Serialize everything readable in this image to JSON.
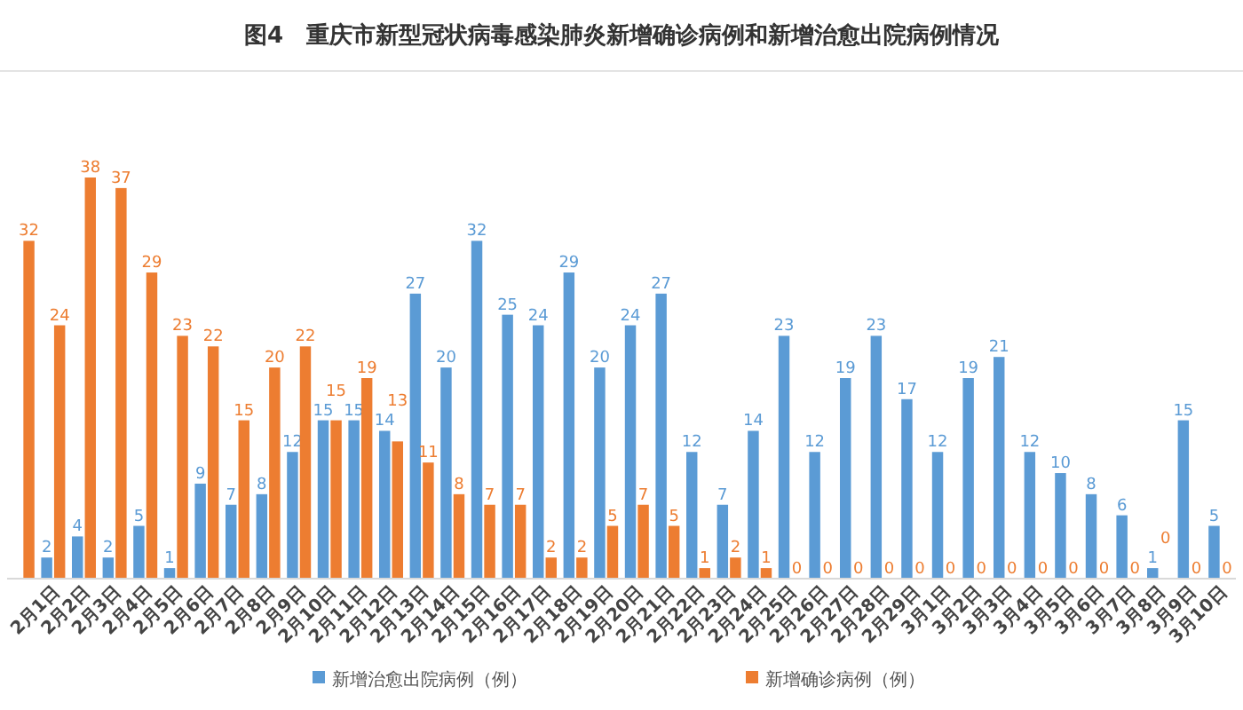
{
  "chart_data": {
    "type": "bar",
    "title": "图4　重庆市新型冠状病毒感染肺炎新增确诊病例和新增治愈出院病例情况",
    "categories": [
      null,
      "2月1日",
      "2月2日",
      "2月3日",
      "2月4日",
      "2月5日",
      "2月6日",
      "2月7日",
      "2月8日",
      "2月9日",
      "2月10日",
      "2月11日",
      "2月12日",
      "2月13日",
      "2月14日",
      "2月15日",
      "2月16日",
      "2月17日",
      "2月18日",
      "2月19日",
      "2月20日",
      "2月21日",
      "2月22日",
      "2月23日",
      "2月24日",
      "2月25日",
      "2月26日",
      "2月27日",
      "2月28日",
      "2月29日",
      "3月1日",
      "3月2日",
      "3月3日",
      "3月4日",
      "3月5日",
      "3月6日",
      "3月7日",
      "3月8日",
      "3月9日",
      "3月10日"
    ],
    "series": [
      {
        "name": "新增治愈出院病例（例）",
        "color": "#5b9bd5",
        "values": [
          null,
          2,
          4,
          2,
          5,
          1,
          9,
          7,
          8,
          12,
          15,
          15,
          14,
          27,
          20,
          32,
          25,
          24,
          29,
          20,
          24,
          27,
          12,
          7,
          14,
          23,
          12,
          19,
          23,
          17,
          12,
          19,
          21,
          12,
          10,
          8,
          6,
          1,
          15,
          5
        ]
      },
      {
        "name": "新增确诊病例（例）",
        "color": "#ed7d31",
        "values": [
          32,
          24,
          38,
          37,
          29,
          23,
          22,
          15,
          20,
          22,
          15,
          19,
          13,
          11,
          8,
          7,
          7,
          2,
          2,
          5,
          7,
          5,
          1,
          2,
          1,
          0,
          0,
          0,
          0,
          0,
          0,
          0,
          0,
          0,
          0,
          0,
          0,
          0,
          0,
          0
        ]
      }
    ],
    "data_labels": true,
    "legend": "bottom"
  }
}
